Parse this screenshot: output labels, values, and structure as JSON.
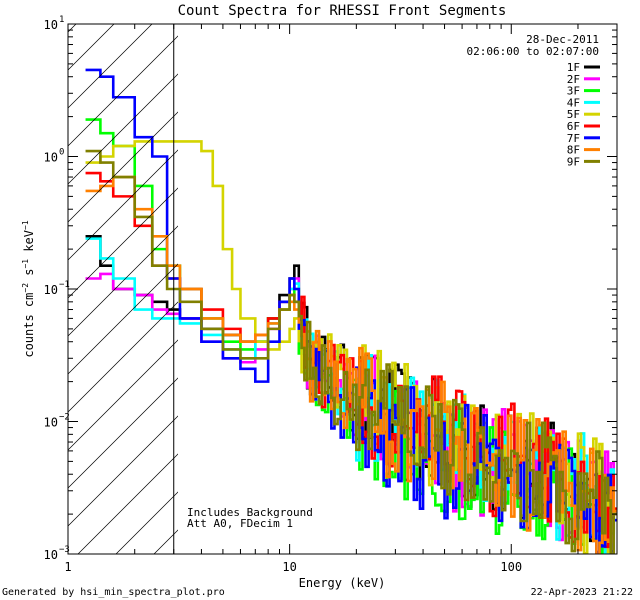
{
  "chart_data": {
    "type": "line",
    "title": "Count Spectra for RHESSI Front Segments",
    "xlabel": "Energy (keV)",
    "ylabel": "counts cm-2 s-1 keV-1",
    "xscale": "log",
    "yscale": "log",
    "xlim": [
      1,
      300
    ],
    "ylim": [
      0.001,
      10
    ],
    "x_ticks": [
      {
        "value": 1,
        "label": "1"
      },
      {
        "value": 10,
        "label": "10"
      },
      {
        "value": 100,
        "label": "100"
      }
    ],
    "y_ticks": [
      {
        "value": 10,
        "label": "10"
      },
      {
        "value": 1,
        "label": "10"
      },
      {
        "value": 0.1,
        "label": "10"
      },
      {
        "value": 0.01,
        "label": "10"
      },
      {
        "value": 0.001,
        "label": "10"
      }
    ],
    "y_tick_exponents": [
      "1",
      "0",
      "−1",
      "−2",
      "−3"
    ],
    "date": "28-Dec-2011",
    "time_range": "02:06:00 to 02:07:00",
    "excluded_region": {
      "from": 1,
      "to": 3
    },
    "annotations": [
      "Includes Background",
      "Att A0, FDecim 1"
    ],
    "series": [
      {
        "name": "1F",
        "color": "#000000",
        "x": [
          1.2,
          1.4,
          1.6,
          2.0,
          2.4,
          2.8,
          3.2,
          4.0,
          5.0,
          6.0,
          7.0,
          8.0,
          9.0,
          10.0,
          10.5,
          11.0,
          12.0,
          14.0,
          17.0,
          20.0,
          25.0,
          30.0,
          40.0,
          50.0,
          60.0,
          80.0,
          100.0,
          130.0,
          160.0,
          200.0,
          250.0,
          290.0
        ],
        "values": [
          0.25,
          0.15,
          0.1,
          0.09,
          0.08,
          0.07,
          0.06,
          0.05,
          0.045,
          0.04,
          0.04,
          0.06,
          0.09,
          0.12,
          0.15,
          0.07,
          0.035,
          0.025,
          0.02,
          0.015,
          0.012,
          0.01,
          0.008,
          0.007,
          0.006,
          0.005,
          0.005,
          0.004,
          0.0035,
          0.003,
          0.0025,
          0.002
        ]
      },
      {
        "name": "2F",
        "color": "#ff00ff",
        "x": [
          1.2,
          1.4,
          1.6,
          2.0,
          2.4,
          2.8,
          3.2,
          4.0,
          5.0,
          6.0,
          7.0,
          8.0,
          9.0,
          10.0,
          10.5,
          11.0,
          12.0,
          14.0,
          17.0,
          20.0,
          25.0,
          30.0,
          40.0,
          50.0,
          60.0,
          80.0,
          100.0,
          130.0,
          160.0,
          200.0,
          250.0,
          290.0
        ],
        "values": [
          0.12,
          0.13,
          0.1,
          0.09,
          0.07,
          0.065,
          0.06,
          0.04,
          0.03,
          0.028,
          0.035,
          0.05,
          0.08,
          0.1,
          0.12,
          0.06,
          0.03,
          0.022,
          0.018,
          0.014,
          0.011,
          0.009,
          0.007,
          0.006,
          0.0055,
          0.0048,
          0.0045,
          0.0038,
          0.0033,
          0.0028,
          0.0024,
          0.002
        ]
      },
      {
        "name": "3F",
        "color": "#00ff00",
        "x": [
          1.2,
          1.4,
          1.6,
          2.0,
          2.4,
          2.8,
          3.2,
          4.0,
          5.0,
          6.0,
          7.0,
          8.0,
          9.0,
          10.0,
          10.5,
          11.0,
          12.0,
          14.0,
          17.0,
          20.0,
          25.0,
          30.0,
          40.0,
          50.0,
          60.0,
          80.0,
          100.0,
          130.0,
          160.0,
          200.0,
          250.0,
          290.0
        ],
        "values": [
          1.9,
          1.5,
          1.2,
          0.6,
          0.2,
          0.15,
          0.1,
          0.06,
          0.04,
          0.035,
          0.04,
          0.06,
          0.07,
          0.09,
          0.1,
          0.05,
          0.03,
          0.02,
          0.015,
          0.012,
          0.009,
          0.008,
          0.006,
          0.005,
          0.005,
          0.004,
          0.004,
          0.0035,
          0.003,
          0.0027,
          0.0022,
          0.0018
        ]
      },
      {
        "name": "4F",
        "color": "#00ffff",
        "x": [
          1.2,
          1.4,
          1.6,
          2.0,
          2.4,
          2.8,
          3.2,
          4.0,
          5.0,
          6.0,
          7.0,
          8.0,
          9.0,
          10.0,
          10.5,
          11.0,
          12.0,
          14.0,
          17.0,
          20.0,
          25.0,
          30.0,
          40.0,
          50.0,
          60.0,
          80.0,
          100.0,
          130.0,
          160.0,
          200.0,
          250.0,
          290.0
        ],
        "values": [
          0.24,
          0.17,
          0.12,
          0.07,
          0.06,
          0.06,
          0.055,
          0.045,
          0.035,
          0.03,
          0.04,
          0.055,
          0.08,
          0.1,
          0.11,
          0.06,
          0.03,
          0.022,
          0.018,
          0.014,
          0.011,
          0.01,
          0.008,
          0.007,
          0.006,
          0.005,
          0.0045,
          0.004,
          0.0035,
          0.003,
          0.0025,
          0.0021
        ]
      },
      {
        "name": "5F",
        "color": "#d4d400",
        "x": [
          1.2,
          1.4,
          1.6,
          2.0,
          2.4,
          2.8,
          3.2,
          4.0,
          4.5,
          5.0,
          5.5,
          6.0,
          7.0,
          8.0,
          9.0,
          10.0,
          10.5,
          11.0,
          12.0,
          14.0,
          17.0,
          20.0,
          25.0,
          30.0,
          40.0,
          50.0,
          60.0,
          80.0,
          100.0,
          130.0,
          160.0,
          200.0,
          250.0,
          290.0
        ],
        "values": [
          0.9,
          1.0,
          1.2,
          1.3,
          1.3,
          1.3,
          1.3,
          1.1,
          0.6,
          0.2,
          0.1,
          0.06,
          0.04,
          0.035,
          0.04,
          0.05,
          0.06,
          0.05,
          0.03,
          0.025,
          0.02,
          0.016,
          0.013,
          0.011,
          0.009,
          0.0075,
          0.0065,
          0.0055,
          0.005,
          0.0042,
          0.0036,
          0.003,
          0.0026,
          0.0022
        ]
      },
      {
        "name": "6F",
        "color": "#ff0000",
        "x": [
          1.2,
          1.4,
          1.6,
          2.0,
          2.4,
          2.8,
          3.2,
          4.0,
          5.0,
          6.0,
          7.0,
          8.0,
          9.0,
          10.0,
          10.5,
          11.0,
          12.0,
          14.0,
          17.0,
          20.0,
          25.0,
          30.0,
          40.0,
          50.0,
          60.0,
          80.0,
          100.0,
          130.0,
          160.0,
          200.0,
          250.0,
          290.0
        ],
        "values": [
          0.75,
          0.65,
          0.5,
          0.3,
          0.15,
          0.12,
          0.1,
          0.07,
          0.05,
          0.04,
          0.045,
          0.06,
          0.08,
          0.09,
          0.08,
          0.06,
          0.035,
          0.025,
          0.02,
          0.016,
          0.013,
          0.011,
          0.009,
          0.0075,
          0.0065,
          0.0055,
          0.005,
          0.0042,
          0.0036,
          0.003,
          0.0026,
          0.0022
        ]
      },
      {
        "name": "7F",
        "color": "#0000ff",
        "x": [
          1.2,
          1.4,
          1.6,
          2.0,
          2.4,
          2.8,
          3.2,
          4.0,
          5.0,
          6.0,
          7.0,
          8.0,
          9.0,
          10.0,
          10.5,
          11.0,
          12.0,
          14.0,
          17.0,
          20.0,
          25.0,
          30.0,
          40.0,
          50.0,
          60.0,
          80.0,
          100.0,
          130.0,
          160.0,
          200.0,
          250.0,
          290.0
        ],
        "values": [
          4.5,
          4.0,
          2.8,
          1.4,
          1.0,
          0.12,
          0.06,
          0.04,
          0.03,
          0.025,
          0.02,
          0.04,
          0.08,
          0.12,
          0.1,
          0.05,
          0.03,
          0.02,
          0.015,
          0.012,
          0.009,
          0.008,
          0.006,
          0.005,
          0.005,
          0.004,
          0.004,
          0.0035,
          0.003,
          0.0027,
          0.0022,
          0.0018
        ]
      },
      {
        "name": "8F",
        "color": "#ff8000",
        "x": [
          1.2,
          1.4,
          1.6,
          2.0,
          2.4,
          2.8,
          3.2,
          4.0,
          5.0,
          6.0,
          7.0,
          8.0,
          9.0,
          10.0,
          10.5,
          11.0,
          12.0,
          14.0,
          17.0,
          20.0,
          25.0,
          30.0,
          40.0,
          50.0,
          60.0,
          80.0,
          100.0,
          130.0,
          160.0,
          200.0,
          250.0,
          290.0
        ],
        "values": [
          0.55,
          0.6,
          0.7,
          0.4,
          0.25,
          0.15,
          0.1,
          0.06,
          0.045,
          0.04,
          0.045,
          0.055,
          0.07,
          0.08,
          0.07,
          0.05,
          0.03,
          0.022,
          0.018,
          0.014,
          0.011,
          0.01,
          0.008,
          0.007,
          0.006,
          0.005,
          0.0045,
          0.004,
          0.0035,
          0.003,
          0.0025,
          0.0021
        ]
      },
      {
        "name": "9F",
        "color": "#808000",
        "x": [
          1.2,
          1.4,
          1.6,
          2.0,
          2.4,
          2.8,
          3.2,
          4.0,
          5.0,
          6.0,
          7.0,
          8.0,
          9.0,
          10.0,
          10.5,
          11.0,
          12.0,
          14.0,
          17.0,
          20.0,
          25.0,
          30.0,
          40.0,
          50.0,
          60.0,
          80.0,
          100.0,
          130.0,
          160.0,
          200.0,
          250.0,
          290.0
        ],
        "values": [
          1.1,
          0.9,
          0.7,
          0.35,
          0.15,
          0.1,
          0.08,
          0.05,
          0.035,
          0.03,
          0.03,
          0.05,
          0.07,
          0.09,
          0.08,
          0.05,
          0.03,
          0.022,
          0.018,
          0.014,
          0.011,
          0.009,
          0.007,
          0.006,
          0.0055,
          0.0048,
          0.0045,
          0.0038,
          0.0033,
          0.0028,
          0.0024,
          0.002
        ]
      }
    ]
  },
  "footer": {
    "generated_by": "Generated by hsi_min_spectra_plot.pro",
    "timestamp": "22-Apr-2023 21:22"
  },
  "colors": {
    "background": "#ffffff",
    "axes": "#000000"
  }
}
